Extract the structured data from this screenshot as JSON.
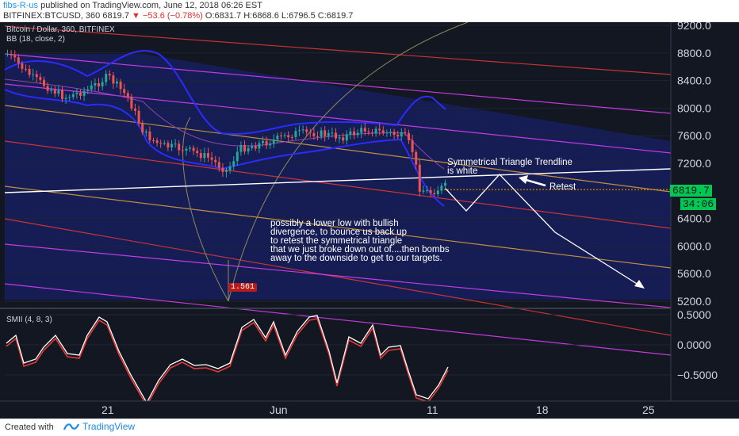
{
  "header": {
    "author": "fibs-R-us",
    "published": "published on TradingView.com, June 12, 2018 06:26 EST",
    "symbol_line_prefix": "BITFINEX:BTCUSD, 360",
    "last": "6819.7",
    "change": "▼ −53.6 (−0.78%)",
    "ohlc": "O:6831.7 H:6868.6 L:6796.5 C:6819.7"
  },
  "legend": {
    "title": "Bitcoin / Dollar, 360, BITFINEX",
    "indicator": "BB (18, close, 2)",
    "smii": "SMII (4, 8, 3)"
  },
  "price_tags": {
    "last": "6819.7",
    "countdown": "34:06",
    "fib": "1.561"
  },
  "annotations": {
    "triangle": "Symmetrical Triangle Trendline\nis white",
    "retest": "Retest",
    "note": "possibly a lower low with bullish\ndivergence, to bounce us back up\nto retest the symmetrical triangle\nthat we just broke down out of....then bombs\naway to the downside to get to our targets."
  },
  "footer": {
    "created": "Created with",
    "brand": "TradingView"
  },
  "colors": {
    "background": "#131722",
    "channel_fill": "#1a237e",
    "up": "#26a69a",
    "down": "#ef5350",
    "bb": "#2b2bff",
    "smii_main": "#ffffff",
    "smii_signal": "#e53935",
    "orange": "#e0a040",
    "magenta": "#e040fb"
  },
  "chart_data": [
    {
      "type": "candlestick",
      "title": "Bitcoin / Dollar, 360, BITFINEX",
      "x_ticks": [
        "21",
        "Jun",
        "11",
        "18",
        "25"
      ],
      "y_ticks": [
        5200,
        5600,
        6000,
        6400,
        6800,
        7200,
        7600,
        8000,
        8400,
        8800,
        9200
      ],
      "ylim": [
        5100,
        9350
      ],
      "last_price": 6819.7,
      "close_path_approx": [
        {
          "x": "May 16",
          "y": 8600
        },
        {
          "x": "May 18",
          "y": 8400
        },
        {
          "x": "May 20",
          "y": 8200
        },
        {
          "x": "May 22",
          "y": 8300
        },
        {
          "x": "May 24",
          "y": 7600
        },
        {
          "x": "May 26",
          "y": 7500
        },
        {
          "x": "May 28",
          "y": 7200
        },
        {
          "x": "May 30",
          "y": 7450
        },
        {
          "x": "Jun 1",
          "y": 7500
        },
        {
          "x": "Jun 3",
          "y": 7600
        },
        {
          "x": "Jun 5",
          "y": 7550
        },
        {
          "x": "Jun 7",
          "y": 7700
        },
        {
          "x": "Jun 9",
          "y": 7600
        },
        {
          "x": "Jun 10",
          "y": 6700
        },
        {
          "x": "Jun 12",
          "y": 6820
        }
      ],
      "indicator": "BB (18, close, 2)"
    },
    {
      "type": "line",
      "title": "SMII (4, 8, 3)",
      "y_ticks": [
        -0.5,
        0.0,
        0.5
      ],
      "ylim": [
        -0.85,
        0.6
      ],
      "series": [
        {
          "name": "",
          "color": "#ffffff"
        },
        {
          "name": "",
          "color": "#e53935"
        }
      ]
    }
  ]
}
